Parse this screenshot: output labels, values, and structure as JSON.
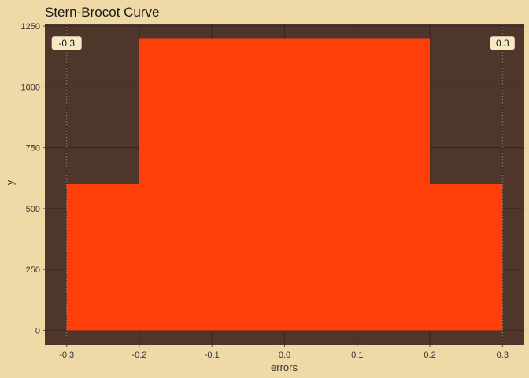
{
  "chart_data": {
    "type": "area",
    "title": "Stern-Brocot Curve",
    "xlabel": "errors",
    "ylabel": "y",
    "x": [
      -0.3,
      -0.2,
      -0.2,
      0.2,
      0.2,
      0.3
    ],
    "y": [
      600,
      600,
      1200,
      1200,
      600,
      600
    ],
    "xlim": [
      -0.33,
      0.33
    ],
    "ylim": [
      -60,
      1260
    ],
    "xticks": [
      -0.3,
      -0.2,
      -0.1,
      0.0,
      0.1,
      0.2,
      0.3
    ],
    "xtick_labels": [
      "-0.3",
      "-0.2",
      "-0.1",
      "0.0",
      "0.1",
      "0.2",
      "0.3"
    ],
    "yticks": [
      0,
      250,
      500,
      750,
      1000,
      1250
    ],
    "ytick_labels": [
      "0",
      "250",
      "500",
      "750",
      "1000",
      "1250"
    ],
    "annotations": [
      {
        "x": -0.3,
        "label": "-0.3"
      },
      {
        "x": 0.3,
        "label": "0.3"
      }
    ],
    "grid": true,
    "colors": {
      "page_background": "#EFD9A6",
      "panel_background": "#4F362A",
      "fill": "#FF3F0A",
      "grid": "#3A2820",
      "vline": "#9A8A78",
      "annotation_box": "#F7E9C4"
    }
  }
}
